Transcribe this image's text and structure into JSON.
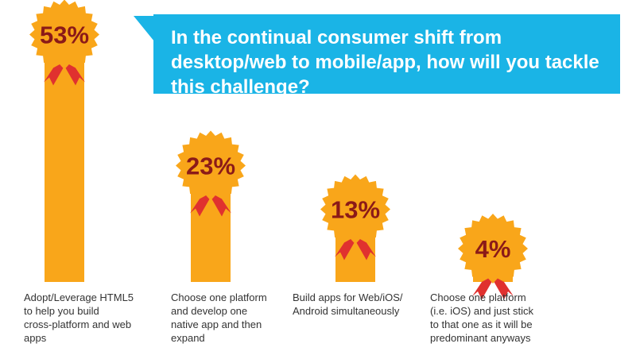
{
  "title": "In the continual consumer shift from desktop/web to mobile/app, how will you tackle this challenge?",
  "colors": {
    "bar": "#f9a61a",
    "badge": "#f9a61a",
    "ribbon": "#e0312f",
    "label": "#8b1a18",
    "title_bg": "#1ab4e6"
  },
  "chart_data": {
    "type": "bar",
    "title": "In the continual consumer shift from desktop/web to mobile/app, how will you tackle this challenge?",
    "categories": [
      "Adopt/Leverage HTML5 to help you build cross-platform and web apps",
      "Choose one platform and develop one native app and then expand",
      "Build apps for Web/iOS/ Android simultaneously",
      "Choose one platform (i.e. iOS) and just stick to that one as it will be predominant anyways"
    ],
    "values": [
      53,
      23,
      13,
      4
    ],
    "value_labels": [
      "53%",
      "23%",
      "13%",
      "4%"
    ],
    "unit": "%",
    "ylim": [
      0,
      60
    ],
    "grid": false,
    "legend": "none"
  },
  "category_lines": [
    [
      "Adopt/Leverage HTML5",
      "to help you build",
      "cross-platform and web",
      "apps"
    ],
    [
      "Choose one platform",
      "and develop one",
      "native app and then",
      "expand"
    ],
    [
      "Build apps for Web/iOS/",
      "Android simultaneously"
    ],
    [
      "Choose one platform",
      "(i.e. iOS) and just stick",
      "to that one as it will be",
      "predominant anyways"
    ]
  ]
}
